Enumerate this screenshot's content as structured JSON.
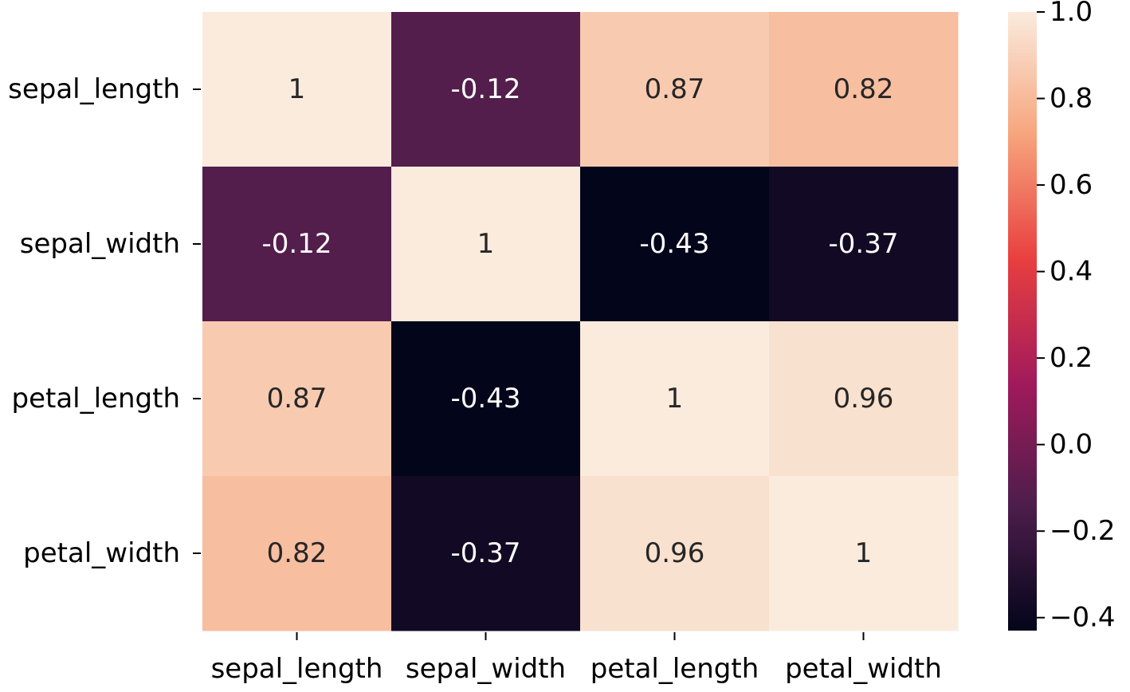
{
  "chart_data": {
    "type": "heatmap",
    "title": "",
    "xlabel": "",
    "ylabel": "",
    "x_categories": [
      "sepal_length",
      "sepal_width",
      "petal_length",
      "petal_width"
    ],
    "y_categories": [
      "sepal_length",
      "sepal_width",
      "petal_length",
      "petal_width"
    ],
    "values": [
      [
        1,
        -0.12,
        0.87,
        0.82
      ],
      [
        -0.12,
        1,
        -0.43,
        -0.37
      ],
      [
        0.87,
        -0.43,
        1,
        0.96
      ],
      [
        0.82,
        -0.37,
        0.96,
        1
      ]
    ],
    "annotations": [
      [
        "1",
        "-0.12",
        "0.87",
        "0.82"
      ],
      [
        "-0.12",
        "1",
        "-0.43",
        "-0.37"
      ],
      [
        "0.87",
        "-0.43",
        "1",
        "0.96"
      ],
      [
        "0.82",
        "-0.37",
        "0.96",
        "1"
      ]
    ],
    "colorbar": {
      "range": [
        -0.43,
        1.0
      ],
      "ticks": [
        1.0,
        0.8,
        0.6,
        0.4,
        0.2,
        0.0,
        -0.2,
        -0.4
      ],
      "tick_labels": [
        "1.0",
        "0.8",
        "0.6",
        "0.4",
        "0.2",
        "0.0",
        "−0.2",
        "−0.4"
      ],
      "colormap": "rocket",
      "colormap_stops": [
        "#03051a",
        "#4c1d4b",
        "#a11a5b",
        "#e83f3f",
        "#f6a47c",
        "#faebdd"
      ]
    },
    "grid": false
  }
}
